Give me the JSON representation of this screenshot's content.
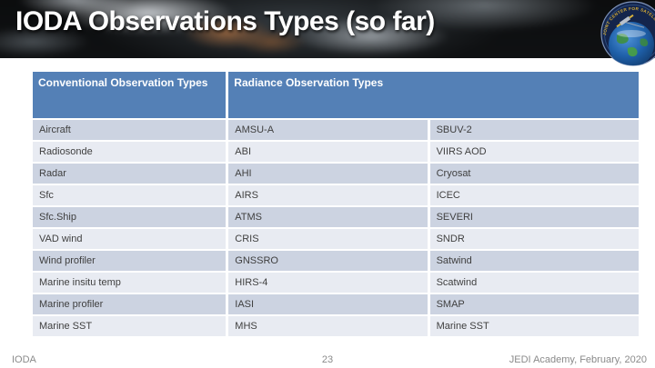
{
  "slide": {
    "title": "IODA Observations Types (so far)",
    "logo": {
      "ring_text": "JOINT CENTER FOR SATELLITE DATA ASSIMILATION"
    },
    "footer": {
      "left": "IODA",
      "page_number": "23",
      "right": "JEDI Academy, February, 2020"
    }
  },
  "table": {
    "headers": [
      "Conventional Observation Types",
      "Radiance Observation Types"
    ],
    "rows": [
      [
        "Aircraft",
        "AMSU-A",
        "SBUV-2"
      ],
      [
        "Radiosonde",
        "ABI",
        "VIIRS AOD"
      ],
      [
        "Radar",
        "AHI",
        "Cryosat"
      ],
      [
        "Sfc",
        "AIRS",
        "ICEC"
      ],
      [
        "Sfc.Ship",
        "ATMS",
        "SEVERI"
      ],
      [
        "VAD wind",
        "CRIS",
        "SNDR"
      ],
      [
        "Wind profiler",
        "GNSSRO",
        "Satwind"
      ],
      [
        "Marine insitu temp",
        "HIRS-4",
        "Scatwind"
      ],
      [
        "Marine profiler",
        "IASI",
        "SMAP"
      ],
      [
        "Marine SST",
        "MHS",
        "Marine SST"
      ]
    ]
  },
  "colors": {
    "header_blue": "#5480b6",
    "row_dark": "#ccd3e1",
    "row_light": "#e8ebf2",
    "footer_text": "#8a8a8a",
    "title_text": "#ffffff",
    "page_background": "#ffffff"
  }
}
